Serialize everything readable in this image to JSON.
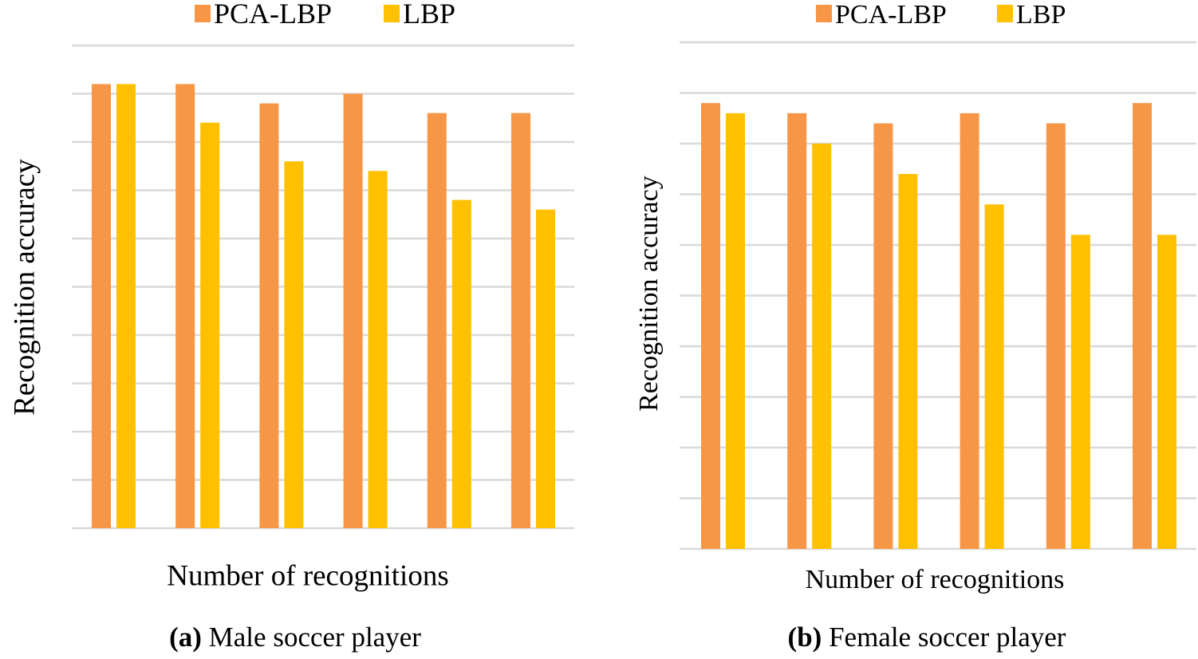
{
  "chart_data": [
    {
      "type": "bar",
      "panel_label": "(a)",
      "caption": "Male soccer player",
      "xlabel": "Number of recognitions",
      "ylabel": "Recognition accuracy",
      "grid": true,
      "legend": "top-center",
      "categories": [
        "",
        "",
        "",
        "",
        "",
        ""
      ],
      "ylim": [
        0,
        9
      ],
      "series": [
        {
          "name": "PCA-LBP",
          "color": "#f79646",
          "values": [
            9.2,
            9.2,
            8.8,
            9.0,
            8.6,
            8.6
          ]
        },
        {
          "name": "LBP",
          "color": "#ffc000",
          "values": [
            9.2,
            8.4,
            7.6,
            7.4,
            6.8,
            6.6
          ]
        }
      ]
    },
    {
      "type": "bar",
      "panel_label": "(b)",
      "caption": "Female soccer player",
      "xlabel": "Number of recognitions",
      "ylabel": "Recognition accuracy",
      "grid": true,
      "legend": "top-center",
      "categories": [
        "",
        "",
        "",
        "",
        "",
        ""
      ],
      "ylim": [
        0,
        9
      ],
      "series": [
        {
          "name": "PCA-LBP",
          "color": "#f79646",
          "values": [
            8.8,
            8.6,
            8.4,
            8.6,
            8.4,
            8.8
          ]
        },
        {
          "name": "LBP",
          "color": "#ffc000",
          "values": [
            8.6,
            8.0,
            7.4,
            6.8,
            6.2,
            6.2
          ]
        }
      ]
    }
  ]
}
